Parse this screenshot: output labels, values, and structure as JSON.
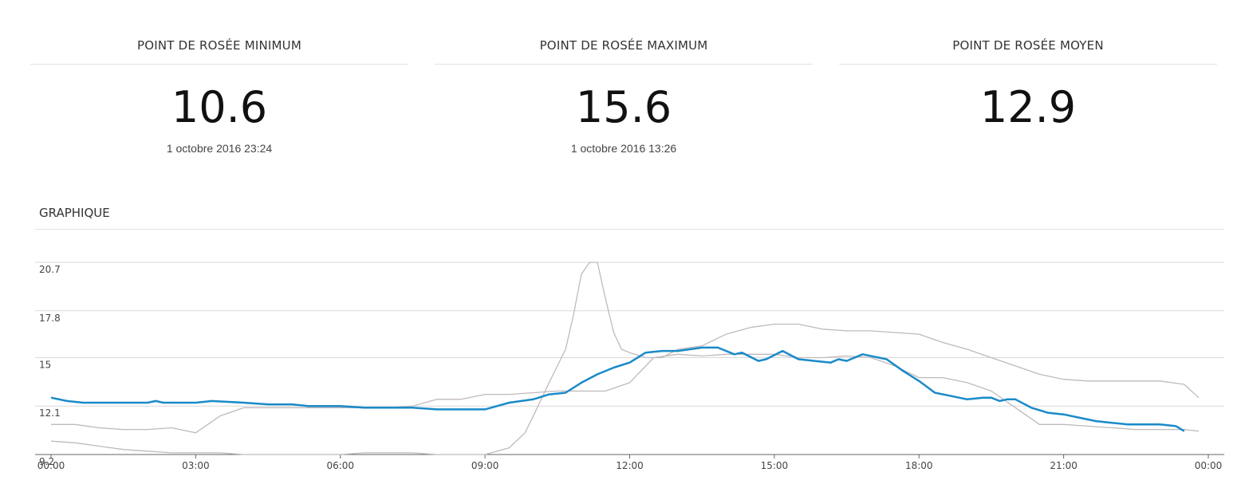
{
  "stats": [
    {
      "title": "POINT DE ROSÉE MINIMUM",
      "value": "10.6",
      "date": "1 octobre 2016 23:24"
    },
    {
      "title": "POINT DE ROSÉE MAXIMUM",
      "value": "15.6",
      "date": "1 octobre 2016 13:26"
    },
    {
      "title": "POINT DE ROSÉE MOYEN",
      "value": "12.9",
      "date": ""
    }
  ],
  "graph_title": "GRAPHIQUE",
  "chart_data": {
    "type": "line",
    "title": "",
    "xlabel": "",
    "ylabel": "",
    "grid": true,
    "ylim": [
      9.2,
      20.7
    ],
    "yticks": [
      "20.7",
      "17.8",
      "15",
      "12.1",
      "9.2"
    ],
    "xticks": [
      "00:00",
      "03:00",
      "06:00",
      "09:00",
      "12:00",
      "15:00",
      "18:00",
      "21:00",
      "00:00"
    ],
    "xlim_hours": [
      0,
      24
    ],
    "colors": {
      "main": "#1a8ac9",
      "secondary": "#c0b9bb"
    },
    "series": [
      {
        "x": [
          0,
          0.33,
          0.67,
          1,
          1.5,
          2,
          2.17,
          2.33,
          3,
          3.33,
          4,
          4.5,
          5,
          5.33,
          5.67,
          6,
          6.5,
          7,
          7.5,
          8,
          8.5,
          9,
          9.5,
          10,
          10.33,
          10.67,
          11,
          11.33,
          11.67,
          12,
          12.33,
          12.67,
          13,
          13.5,
          13.83,
          14.17,
          14.33,
          14.67,
          14.83,
          15.17,
          15.5,
          15.83,
          16.17,
          16.33,
          16.5,
          16.83,
          17.33,
          17.67,
          18,
          18.33,
          18.67,
          19,
          19.33,
          19.5,
          19.67,
          19.83,
          20,
          20.33,
          20.67,
          21,
          21.33,
          21.67,
          22,
          22.33,
          22.67,
          23,
          23.33,
          23.5
        ],
        "y": [
          12.6,
          12.4,
          12.3,
          12.3,
          12.3,
          12.3,
          12.4,
          12.3,
          12.3,
          12.4,
          12.3,
          12.2,
          12.2,
          12.1,
          12.1,
          12.1,
          12.0,
          12.0,
          12.0,
          11.9,
          11.9,
          11.9,
          12.3,
          12.5,
          12.8,
          12.9,
          13.5,
          14.0,
          14.4,
          14.7,
          15.3,
          15.4,
          15.4,
          15.6,
          15.6,
          15.2,
          15.3,
          14.8,
          14.9,
          15.4,
          14.9,
          14.8,
          14.7,
          14.9,
          14.8,
          15.2,
          14.9,
          14.2,
          13.6,
          12.9,
          12.7,
          12.5,
          12.6,
          12.6,
          12.4,
          12.5,
          12.5,
          12.0,
          11.7,
          11.6,
          11.4,
          11.2,
          11.1,
          11.0,
          11.0,
          11.0,
          10.9,
          10.6
        ]
      },
      {
        "x": [
          0,
          0.5,
          1,
          1.5,
          2,
          2.5,
          3,
          3.5,
          4,
          4.5,
          5,
          5.5,
          6,
          6.5,
          7,
          7.5,
          8,
          8.5,
          9,
          9.5,
          9.83,
          10,
          10.33,
          10.67,
          10.83,
          11,
          11.17,
          11.33,
          11.5,
          11.67,
          11.83,
          12,
          12.33,
          12.67,
          13,
          13.5,
          14,
          14.5,
          15,
          15.5,
          16,
          16.5,
          17,
          17.5,
          18,
          18.5,
          19,
          19.5,
          20,
          20.5,
          21,
          21.5,
          22,
          22.5,
          23,
          23.5,
          23.8
        ],
        "y": [
          10.0,
          9.9,
          9.7,
          9.5,
          9.4,
          9.3,
          9.3,
          9.3,
          9.2,
          9.2,
          9.2,
          9.2,
          9.2,
          9.3,
          9.3,
          9.3,
          9.2,
          9.2,
          9.2,
          9.6,
          10.5,
          11.5,
          13.5,
          15.5,
          17.5,
          20.0,
          20.7,
          20.7,
          18.5,
          16.5,
          15.5,
          15.3,
          15.0,
          15.0,
          15.5,
          15.7,
          16.4,
          16.8,
          17.0,
          17.0,
          16.7,
          16.6,
          16.6,
          16.5,
          16.4,
          15.9,
          15.5,
          15.0,
          14.5,
          14.0,
          13.7,
          13.6,
          13.6,
          13.6,
          13.6,
          13.4,
          12.6
        ]
      },
      {
        "x": [
          0,
          0.5,
          1,
          1.5,
          2,
          2.5,
          3,
          3.5,
          4,
          4.5,
          5,
          5.5,
          6,
          6.5,
          7,
          7.5,
          8,
          8.5,
          9,
          9.5,
          10,
          10.5,
          11,
          11.5,
          12,
          12.5,
          13,
          13.5,
          14,
          14.5,
          15,
          15.5,
          16,
          16.5,
          17,
          17.5,
          18,
          18.5,
          19,
          19.5,
          20,
          20.5,
          21,
          21.5,
          22,
          22.5,
          23,
          23.5,
          23.8
        ],
        "y": [
          11.0,
          11.0,
          10.8,
          10.7,
          10.7,
          10.8,
          10.5,
          11.5,
          12.0,
          12.0,
          12.0,
          12.0,
          12.0,
          12.0,
          12.0,
          12.1,
          12.5,
          12.5,
          12.8,
          12.8,
          12.9,
          13.0,
          13.0,
          13.0,
          13.5,
          15.0,
          15.2,
          15.1,
          15.2,
          15.2,
          15.2,
          15.0,
          15.0,
          15.1,
          15.0,
          14.5,
          13.8,
          13.8,
          13.5,
          13.0,
          12.0,
          11.0,
          11.0,
          10.9,
          10.8,
          10.7,
          10.7,
          10.7,
          10.6
        ]
      }
    ]
  }
}
